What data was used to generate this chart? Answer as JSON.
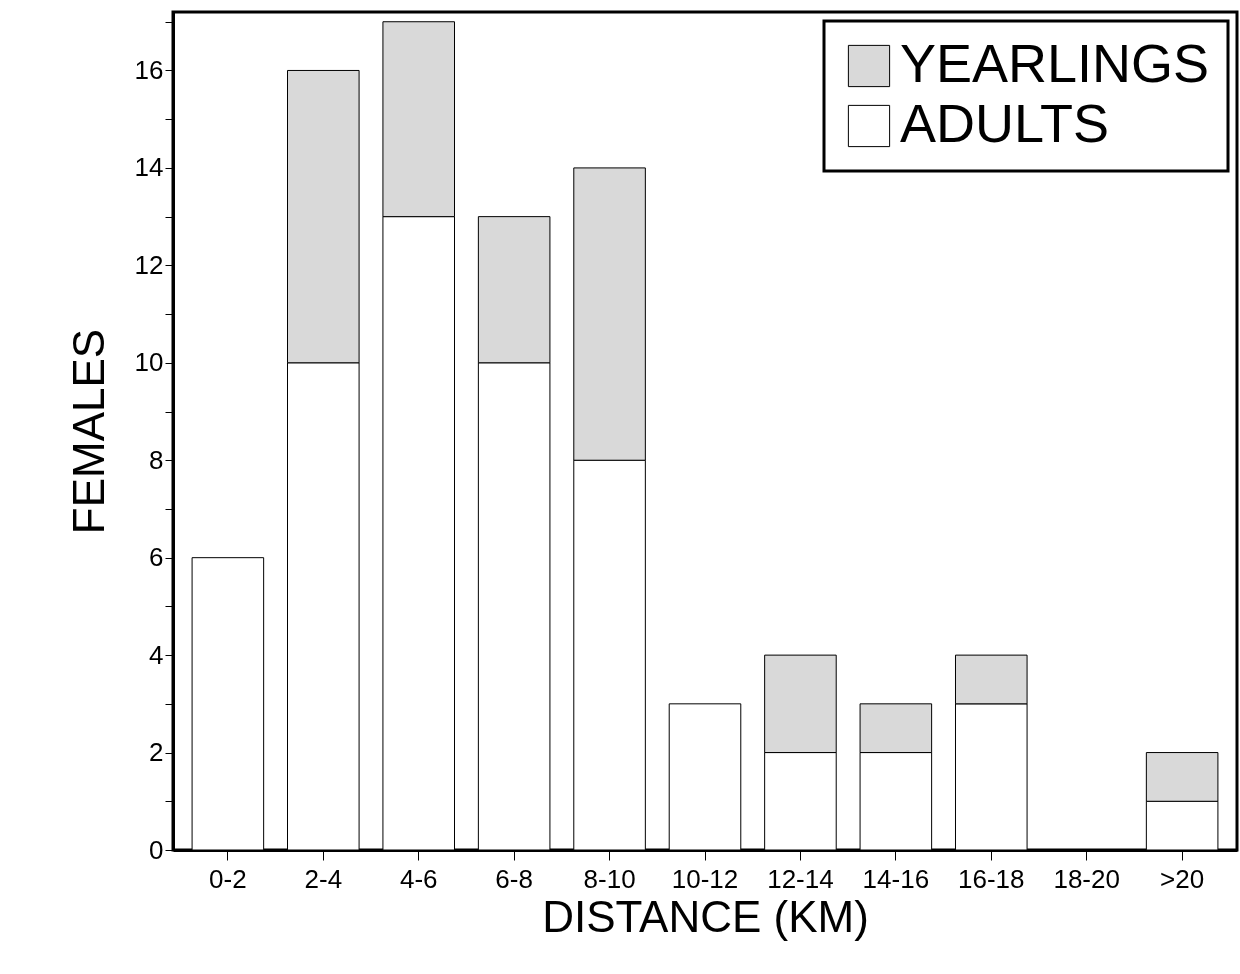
{
  "chart_data": {
    "type": "bar",
    "stacked": true,
    "xlabel": "DISTANCE (KM)",
    "ylabel": "FEMALES",
    "categories": [
      "0-2",
      "2-4",
      "4-6",
      "6-8",
      "8-10",
      "10-12",
      "12-14",
      "14-16",
      "16-18",
      "18-20",
      ">20"
    ],
    "series": [
      {
        "name": "ADULTS",
        "color": "#ffffff",
        "values": [
          6,
          10,
          13,
          10,
          8,
          3,
          2,
          2,
          3,
          0,
          1
        ]
      },
      {
        "name": "YEARLINGS",
        "color": "#d9d9d9",
        "values": [
          0,
          6,
          4,
          3,
          6,
          0,
          2,
          1,
          1,
          0,
          1
        ]
      }
    ],
    "ylim": [
      0,
      17.2
    ],
    "yticks": [
      0,
      {
        "value": 1,
        "label": null
      },
      2,
      {
        "value": 3,
        "label": null
      },
      4,
      {
        "value": 5,
        "label": null
      },
      6,
      {
        "value": 7,
        "label": null
      },
      8,
      {
        "value": 9,
        "label": null
      },
      10,
      {
        "value": 11,
        "label": null
      },
      12,
      {
        "value": 13,
        "label": null
      },
      14,
      {
        "value": 15,
        "label": null
      },
      16,
      {
        "value": 17,
        "label": null
      }
    ],
    "grid": false,
    "legend": "top right"
  }
}
